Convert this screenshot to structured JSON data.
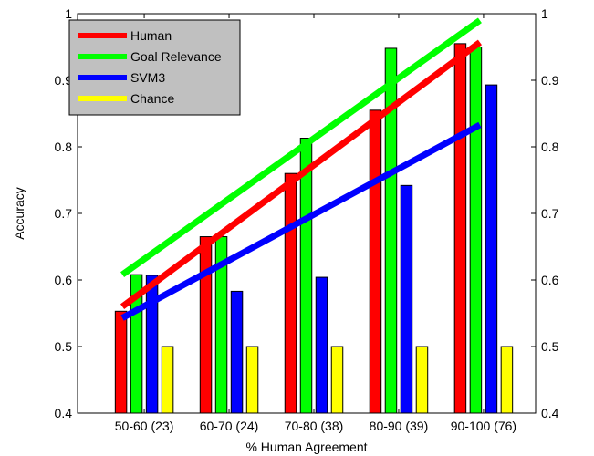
{
  "chart_data": {
    "type": "bar",
    "xlabel": "% Human Agreement",
    "ylabel": "Accuracy",
    "ylim": [
      0.4,
      1.0
    ],
    "yticks": [
      "0.4",
      "0.5",
      "0.6",
      "0.7",
      "0.8",
      "0.9",
      "1"
    ],
    "grid": false,
    "legend_position": "top-left",
    "categories": [
      "50-60 (23)",
      "60-70 (24)",
      "70-80 (38)",
      "80-90 (39)",
      "90-100 (76)"
    ],
    "series": [
      {
        "name": "Human",
        "color": "#ff0000",
        "values": [
          0.553,
          0.665,
          0.76,
          0.855,
          0.955
        ]
      },
      {
        "name": "Goal Relevance",
        "color": "#00ff00",
        "values": [
          0.608,
          0.665,
          0.813,
          0.948,
          0.95
        ]
      },
      {
        "name": "SVM3",
        "color": "#0000ff",
        "values": [
          0.607,
          0.583,
          0.604,
          0.742,
          0.893
        ]
      },
      {
        "name": "Chance",
        "color": "#ffff00",
        "values": [
          0.5,
          0.5,
          0.5,
          0.5,
          0.5
        ]
      }
    ],
    "trend_lines": [
      {
        "series": "Goal Relevance",
        "color": "#00ff00",
        "start": [
          0,
          0.608
        ],
        "end": [
          4,
          0.99
        ]
      },
      {
        "series": "Human",
        "color": "#ff0000",
        "start": [
          0,
          0.56
        ],
        "end": [
          4,
          0.957
        ]
      },
      {
        "series": "SVM3",
        "color": "#0000ff",
        "start": [
          0,
          0.543
        ],
        "end": [
          4,
          0.833
        ]
      }
    ]
  }
}
